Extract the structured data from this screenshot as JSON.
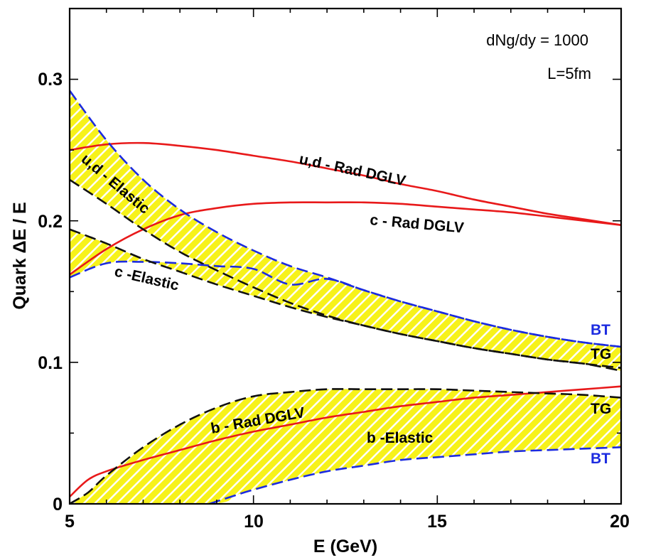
{
  "chart_data": {
    "type": "line",
    "title": "",
    "xlabel": "E (GeV)",
    "ylabel": "Quark ΔE / E",
    "xlim": [
      5,
      20
    ],
    "ylim": [
      0,
      0.35
    ],
    "x_ticks": [
      "5",
      "10",
      "15",
      "20"
    ],
    "y_ticks": [
      "0",
      "0.1",
      "0.2",
      "0.3"
    ],
    "annotations": {
      "density": "dNg/dy = 1000",
      "length": "L=5fm"
    },
    "colors": {
      "rad": "#e8191a",
      "bt": "#1c2be0",
      "tg": "#111111",
      "band_fill": "#f7f21a"
    },
    "series": [
      {
        "name": "u,d - Rad DGLV",
        "style": "solid-red",
        "x": [
          5,
          6,
          7,
          8,
          9,
          10,
          11,
          12,
          13,
          14,
          15,
          16,
          17,
          18,
          19,
          20
        ],
        "y": [
          0.25,
          0.254,
          0.255,
          0.253,
          0.25,
          0.246,
          0.242,
          0.237,
          0.232,
          0.226,
          0.221,
          0.215,
          0.21,
          0.205,
          0.201,
          0.197
        ]
      },
      {
        "name": "c - Rad DGLV",
        "style": "solid-red",
        "x": [
          5,
          6,
          7,
          8,
          9,
          10,
          11,
          12,
          13,
          14,
          15,
          16,
          17,
          18,
          19,
          20
        ],
        "y": [
          0.162,
          0.18,
          0.194,
          0.204,
          0.209,
          0.212,
          0.213,
          0.213,
          0.213,
          0.212,
          0.21,
          0.208,
          0.206,
          0.203,
          0.2,
          0.197
        ]
      },
      {
        "name": "b - Rad DGLV",
        "style": "solid-red",
        "x": [
          5,
          5.5,
          6,
          7,
          8,
          9,
          10,
          11,
          12,
          13,
          14,
          15,
          16,
          17,
          18,
          19,
          20
        ],
        "y": [
          0.005,
          0.017,
          0.023,
          0.031,
          0.038,
          0.045,
          0.051,
          0.056,
          0.061,
          0.065,
          0.069,
          0.072,
          0.075,
          0.077,
          0.079,
          0.081,
          0.083
        ]
      },
      {
        "name": "u,d - Elastic BT",
        "style": "dashed-blue",
        "x": [
          5,
          6,
          7,
          8,
          9,
          10,
          11,
          12,
          13,
          14,
          15,
          16,
          17,
          18,
          19,
          20
        ],
        "y": [
          0.292,
          0.257,
          0.229,
          0.208,
          0.192,
          0.179,
          0.168,
          0.16,
          0.151,
          0.143,
          0.136,
          0.129,
          0.123,
          0.118,
          0.114,
          0.111
        ]
      },
      {
        "name": "u,d - Elastic TG",
        "style": "dashed-black",
        "x": [
          5,
          6,
          7,
          8,
          9,
          10,
          11,
          12,
          13,
          14,
          15,
          16,
          17,
          18,
          19,
          20
        ],
        "y": [
          0.229,
          0.212,
          0.194,
          0.178,
          0.165,
          0.153,
          0.142,
          0.133,
          0.126,
          0.12,
          0.115,
          0.11,
          0.106,
          0.102,
          0.099,
          0.096
        ]
      },
      {
        "name": "c - Elastic BT",
        "style": "dashed-blue",
        "x": [
          5,
          6,
          7,
          8,
          9,
          10,
          11,
          12,
          13,
          14,
          15,
          16,
          17,
          18,
          19,
          20
        ],
        "y": [
          0.16,
          0.17,
          0.171,
          0.17,
          0.168,
          0.166,
          0.155,
          0.159,
          0.151,
          0.143,
          0.136,
          0.129,
          0.123,
          0.118,
          0.114,
          0.111
        ]
      },
      {
        "name": "c - Elastic TG",
        "style": "dashed-black",
        "x": [
          5,
          6,
          7,
          8,
          9,
          10,
          11,
          12,
          13,
          14,
          15,
          16,
          17,
          18,
          19,
          20
        ],
        "y": [
          0.194,
          0.184,
          0.173,
          0.164,
          0.155,
          0.147,
          0.139,
          0.132,
          0.126,
          0.12,
          0.115,
          0.11,
          0.106,
          0.102,
          0.099,
          0.094
        ]
      },
      {
        "name": "b - Elastic BT",
        "style": "dashed-blue",
        "x": [
          8.8,
          9.5,
          10,
          11,
          12,
          13,
          14,
          15,
          16,
          17,
          18,
          19,
          20
        ],
        "y": [
          0,
          0.006,
          0.01,
          0.017,
          0.023,
          0.027,
          0.031,
          0.033,
          0.035,
          0.037,
          0.038,
          0.039,
          0.04
        ]
      },
      {
        "name": "b - Elastic TG",
        "style": "dashed-black",
        "x": [
          5,
          5.5,
          6,
          7,
          8,
          9,
          10,
          11,
          12,
          13,
          14,
          15,
          16,
          17,
          18,
          19,
          20
        ],
        "y": [
          0,
          0.008,
          0.02,
          0.04,
          0.056,
          0.068,
          0.076,
          0.079,
          0.081,
          0.081,
          0.081,
          0.081,
          0.08,
          0.079,
          0.078,
          0.077,
          0.075
        ]
      }
    ],
    "bands": [
      {
        "name": "u,d - Elastic",
        "upper": "u,d - Elastic BT",
        "lower": "u,d - Elastic TG"
      },
      {
        "name": "c -Elastic",
        "upper": "c - Elastic TG",
        "lower": "c - Elastic BT"
      },
      {
        "name": "b -Elastic",
        "upper": "b - Elastic TG",
        "lower": "b - Elastic BT"
      }
    ],
    "labels": {
      "ud_rad": "u,d - Rad DGLV",
      "c_rad": "c - Rad DGLV",
      "b_rad": "b - Rad DGLV",
      "ud_el": "u,d - Elastic",
      "c_el": "c -Elastic",
      "b_el": "b -Elastic",
      "bt_top": "BT",
      "tg_top": "TG",
      "tg_bottom": "TG",
      "bt_bottom": "BT"
    }
  }
}
